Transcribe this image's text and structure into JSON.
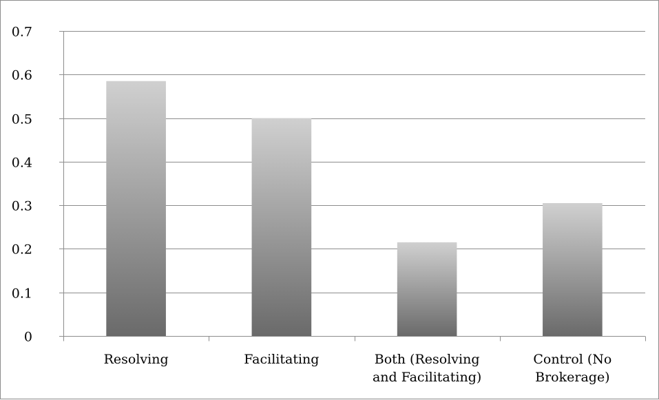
{
  "chart_data": {
    "type": "bar",
    "categories": [
      [
        "Resolving"
      ],
      [
        "Facilitating"
      ],
      [
        "Both (Resolving",
        "and Facilitating)"
      ],
      [
        "Control (No",
        "Brokerage)"
      ]
    ],
    "values": [
      0.585,
      0.5,
      0.215,
      0.305
    ],
    "ylim": [
      0,
      0.7
    ],
    "yticks": [
      "0",
      "0.1",
      "0.2",
      "0.3",
      "0.4",
      "0.5",
      "0.6",
      "0.7"
    ],
    "title": "",
    "xlabel": "",
    "ylabel": "",
    "grid": true,
    "legend": "none",
    "colors": {
      "bar_top": "#d0d0d0",
      "bar_bottom": "#6a6a6a",
      "grid": "#8c8c8c",
      "axis": "#8c8c8c"
    }
  }
}
